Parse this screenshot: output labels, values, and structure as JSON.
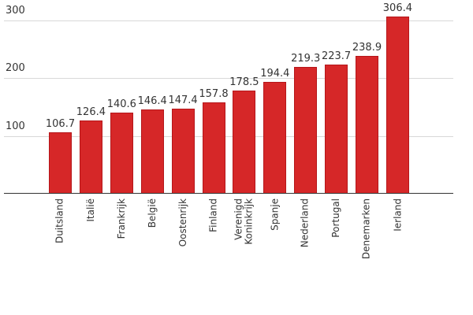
{
  "chart_data": {
    "type": "bar",
    "title": "",
    "xlabel": "",
    "ylabel": "",
    "ylim": [
      0,
      310
    ],
    "yticks": [
      100,
      200,
      300
    ],
    "grid": true,
    "legend": null,
    "categories": [
      "Duitsland",
      "Italië",
      "Frankrijk",
      "België",
      "Oostenrijk",
      "Finland",
      "Verenigd Koninkrijk",
      "Spanje",
      "Nederland",
      "Portugal",
      "Denemarken",
      "Ierland"
    ],
    "values": [
      106.7,
      126.4,
      140.6,
      146.4,
      147.4,
      157.8,
      178.5,
      194.4,
      219.3,
      223.7,
      238.9,
      306.4
    ],
    "value_labels": [
      "106.7",
      "126.4",
      "140.6",
      "146.4",
      "147.4",
      "157.8",
      "178.5",
      "194.4",
      "219.3",
      "223.7",
      "238.9",
      "306.4"
    ],
    "bar_color": "#d62728"
  },
  "axis": {
    "ytick_labels": [
      "100",
      "200",
      "300"
    ]
  }
}
